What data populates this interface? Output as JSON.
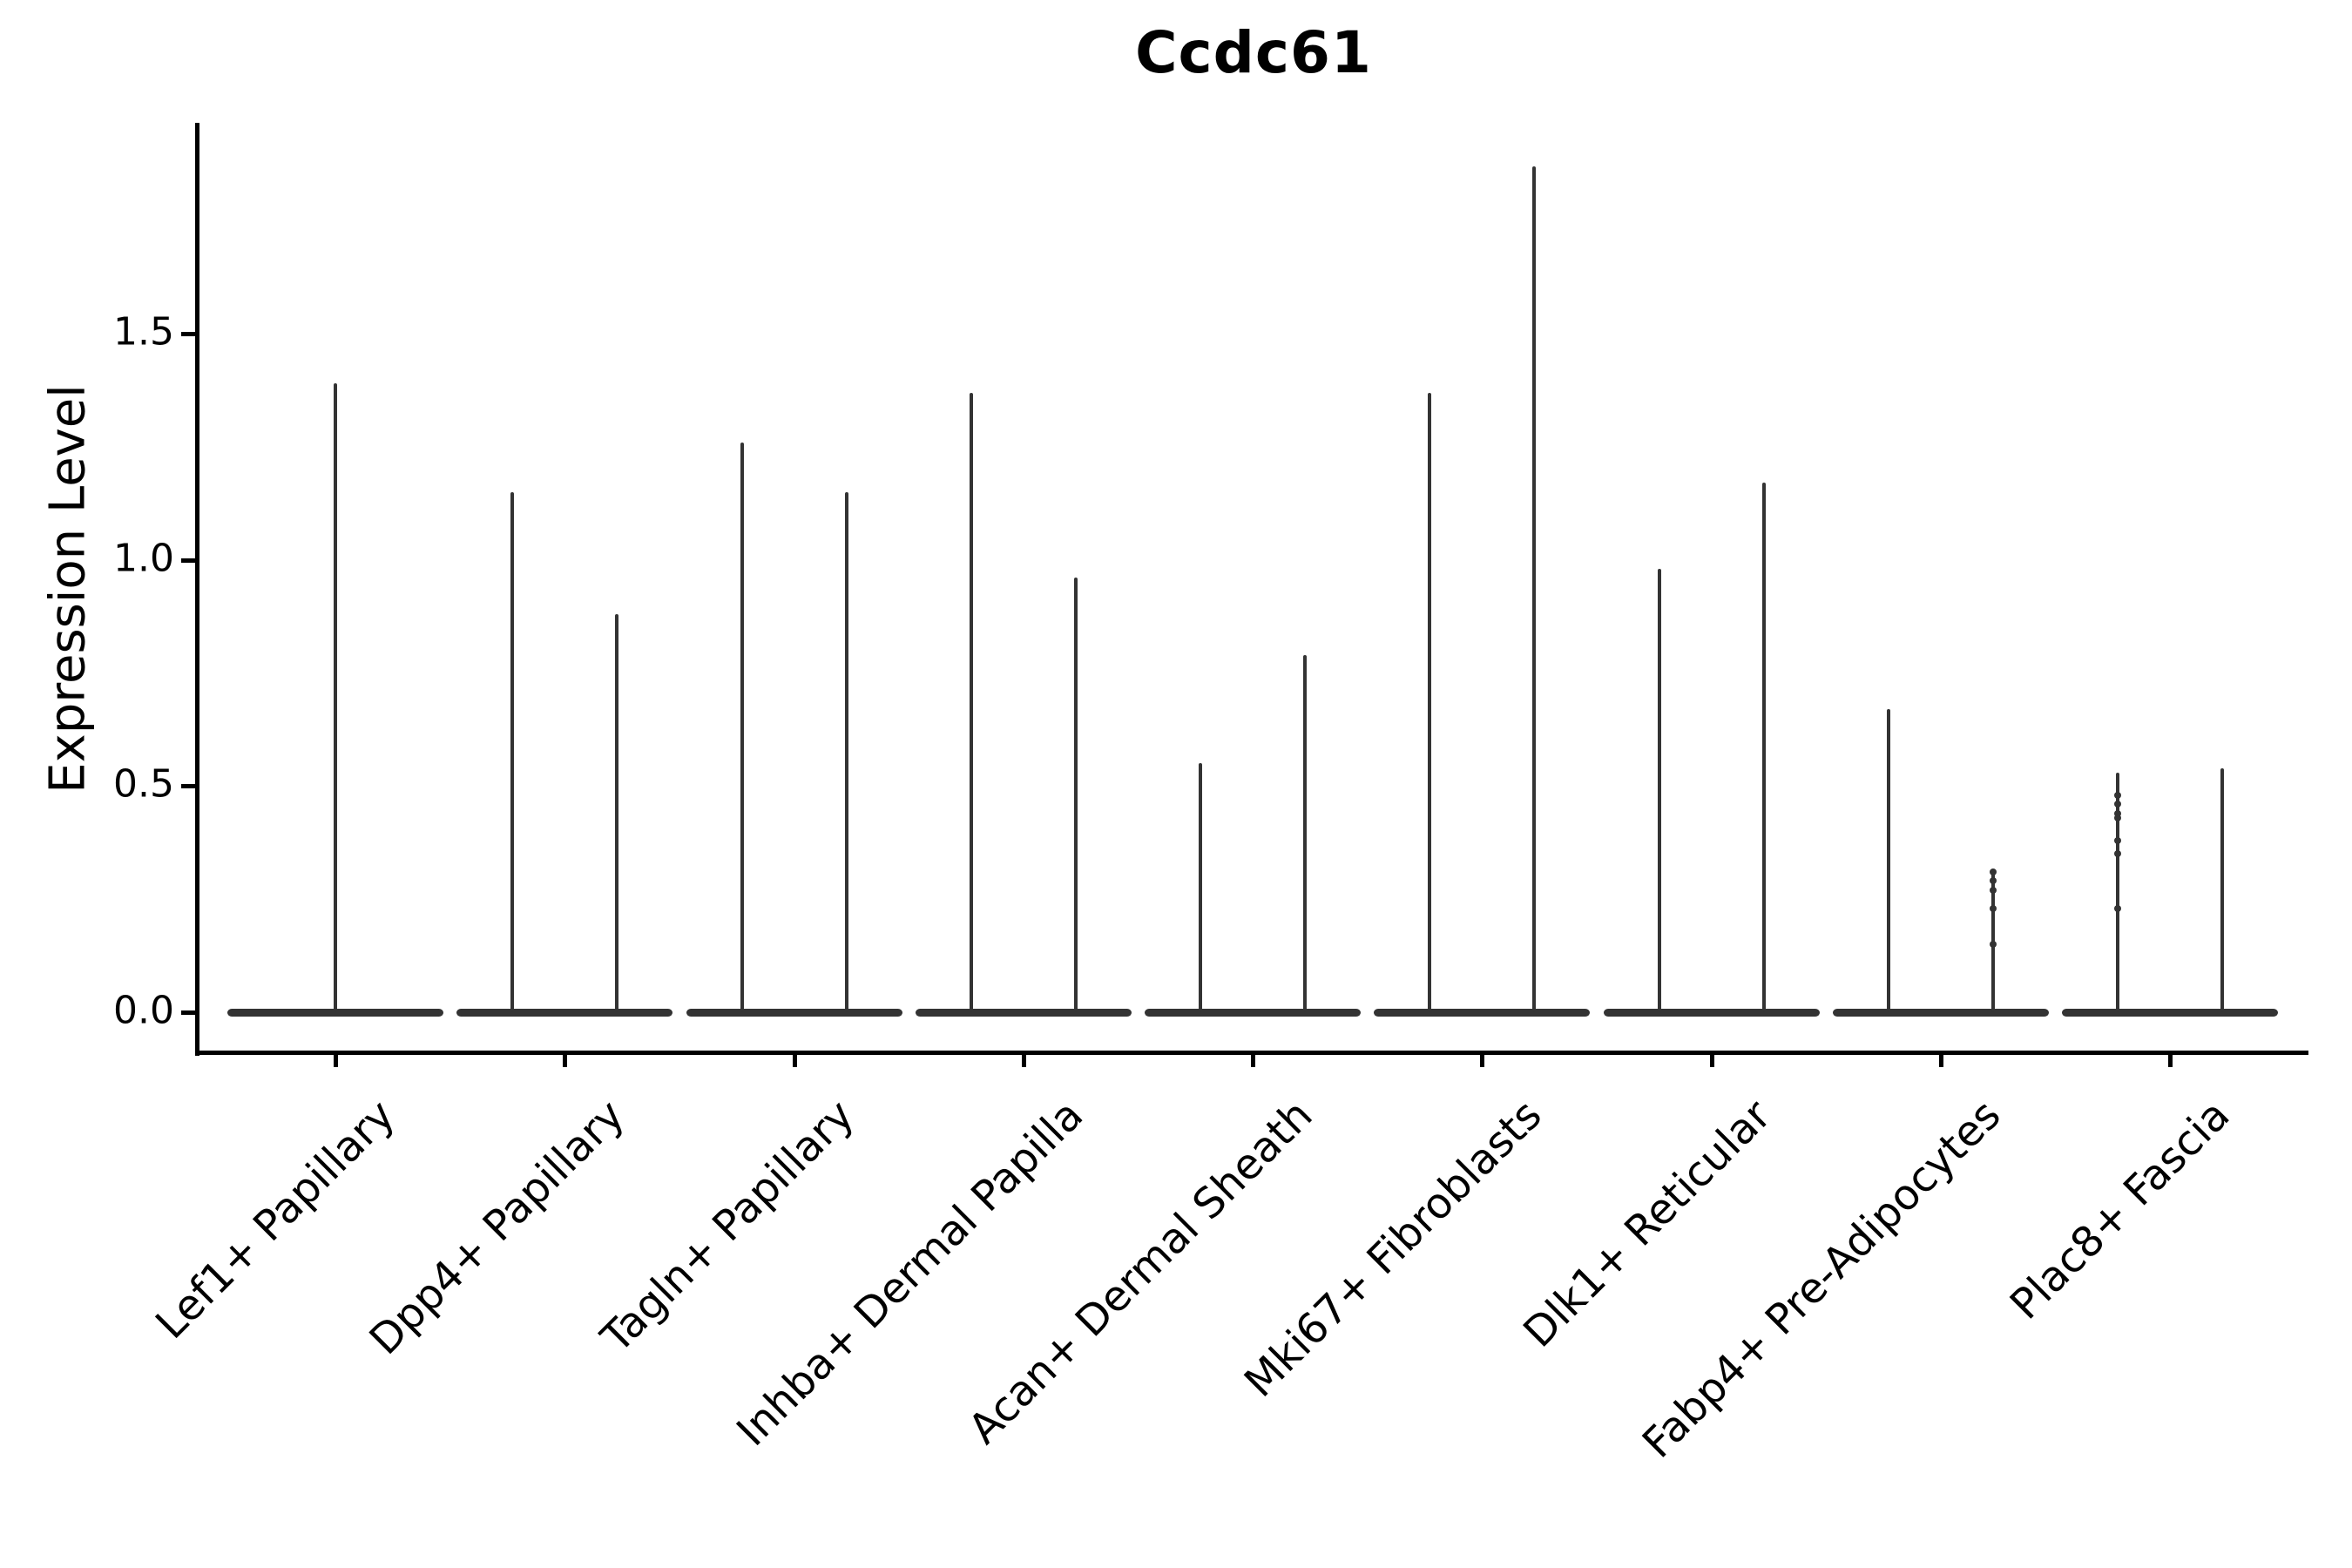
{
  "title": "Ccdc61",
  "y_axis": {
    "label": "Expression Level",
    "tick_labels": [
      "0.0",
      "0.5",
      "1.0",
      "1.5"
    ]
  },
  "colors": {
    "ink": "#000000",
    "violin": "#333333"
  },
  "chart_data": {
    "type": "violin",
    "title": "Ccdc61",
    "xlabel": "",
    "ylabel": "Expression Level",
    "ylim": [
      -0.09,
      1.96
    ],
    "yticks": [
      0.0,
      0.5,
      1.0,
      1.5
    ],
    "grid": false,
    "legend_position": "none",
    "baseline_value": 0.0,
    "shape_note": "Each violin is collapsed flat at expression 0 (wide thin base bar) with a single narrow density spike rising to its maximum expression value; Lef1+ Papillary has one centered violin, all other categories have two side-by-side violins.",
    "categories": [
      "Lef1+ Papillary",
      "Dpp4+ Papillary",
      "Tagln+ Papillary",
      "Inhba+ Dermal Papilla",
      "Acan+ Dermal Sheath",
      "Mki67+ Fibroblasts",
      "Dlk1+ Reticular",
      "Fabp4+ Pre-Adipocytes",
      "Plac8+ Fascia"
    ],
    "series": [
      {
        "category": "Lef1+ Papillary",
        "violins": [
          {
            "max": 1.39,
            "jitter": []
          }
        ]
      },
      {
        "category": "Dpp4+ Papillary",
        "violins": [
          {
            "max": 1.15,
            "jitter": []
          },
          {
            "max": 0.88,
            "jitter": []
          }
        ]
      },
      {
        "category": "Tagln+ Papillary",
        "violins": [
          {
            "max": 1.26,
            "jitter": []
          },
          {
            "max": 1.15,
            "jitter": []
          }
        ]
      },
      {
        "category": "Inhba+ Dermal Papilla",
        "violins": [
          {
            "max": 1.37,
            "jitter": []
          },
          {
            "max": 0.96,
            "jitter": []
          }
        ]
      },
      {
        "category": "Acan+ Dermal Sheath",
        "violins": [
          {
            "max": 0.55,
            "jitter": []
          },
          {
            "max": 0.79,
            "jitter": []
          }
        ]
      },
      {
        "category": "Mki67+ Fibroblasts",
        "violins": [
          {
            "max": 1.37,
            "jitter": []
          },
          {
            "max": 1.87,
            "jitter": []
          }
        ]
      },
      {
        "category": "Dlk1+ Reticular",
        "violins": [
          {
            "max": 0.98,
            "jitter": []
          },
          {
            "max": 1.17,
            "jitter": []
          }
        ]
      },
      {
        "category": "Fabp4+ Pre-Adipocytes",
        "violins": [
          {
            "max": 0.67,
            "jitter": []
          },
          {
            "max": 0.31,
            "jitter": [
              0.31,
              0.29,
              0.27,
              0.23,
              0.15
            ]
          }
        ]
      },
      {
        "category": "Plac8+ Fascia",
        "violins": [
          {
            "max": 0.53,
            "jitter": [
              0.48,
              0.46,
              0.44,
              0.43,
              0.38,
              0.35,
              0.23
            ]
          },
          {
            "max": 0.54,
            "jitter": []
          }
        ]
      }
    ]
  }
}
